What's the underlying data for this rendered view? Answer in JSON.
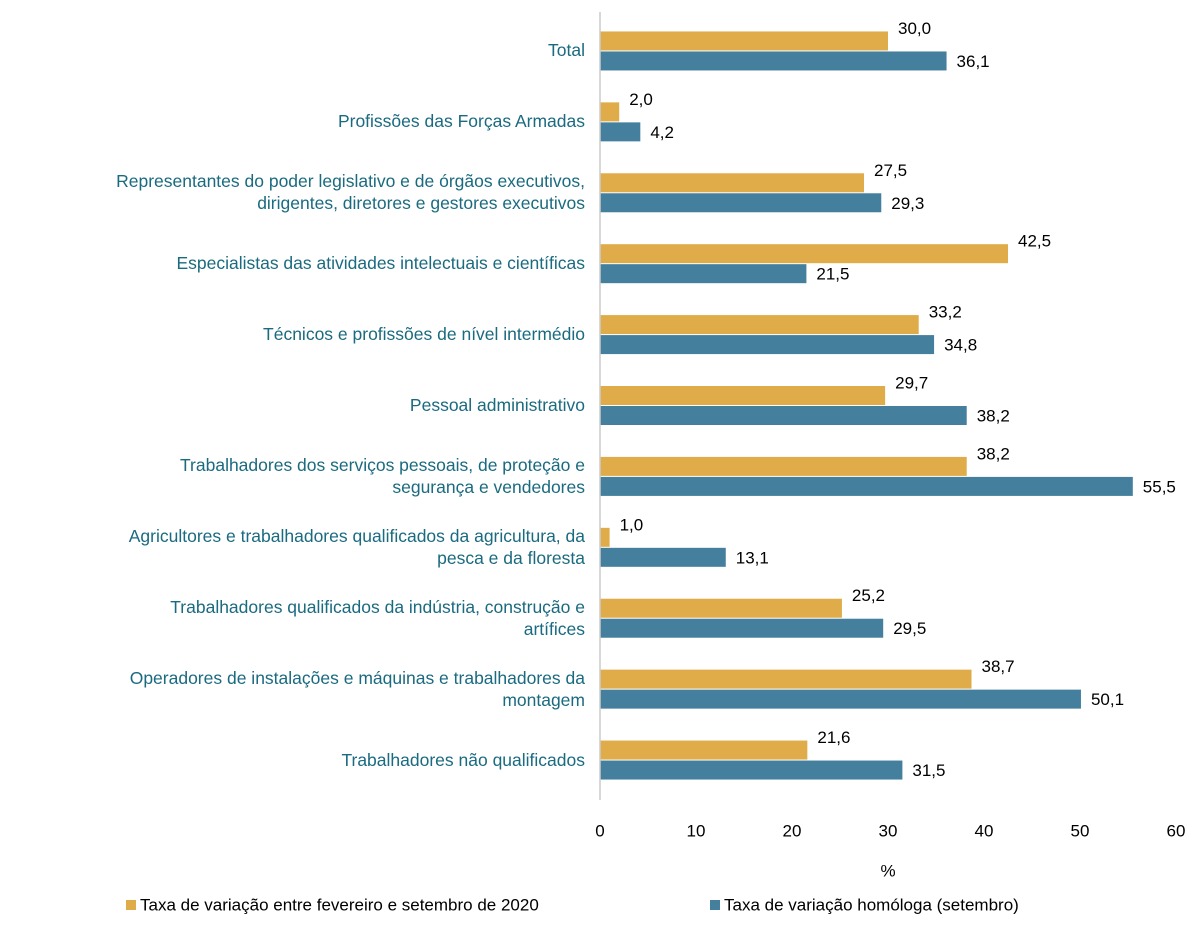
{
  "chart_data": {
    "type": "hbar",
    "categories": [
      "Total",
      "Profissões das Forças Armadas",
      "Representantes do poder legislativo e de órgãos executivos,\ndirigentes, diretores e gestores executivos",
      "Especialistas das atividades intelectuais e científicas",
      "Técnicos e profissões de nível intermédio",
      "Pessoal administrativo",
      "Trabalhadores dos serviços pessoais, de proteção e\nsegurança e vendedores",
      "Agricultores e trabalhadores qualificados da agricultura, da\npesca e da floresta",
      "Trabalhadores qualificados da indústria, construção e\nartífices",
      "Operadores de instalações e máquinas e trabalhadores da\nmontagem",
      "Trabalhadores não qualificados"
    ],
    "series": [
      {
        "name": "Taxa de variação entre fevereiro e setembro de 2020",
        "color": "#e0ac4a",
        "values": [
          30.0,
          2.0,
          27.5,
          42.5,
          33.2,
          29.7,
          38.2,
          1.0,
          25.2,
          38.7,
          21.6
        ],
        "value_labels": [
          "30,0",
          "2,0",
          "27,5",
          "42,5",
          "33,2",
          "29,7",
          "38,2",
          "1,0",
          "25,2",
          "38,7",
          "21,6"
        ]
      },
      {
        "name": "Taxa de variação homóloga (setembro)",
        "color": "#44809e",
        "values": [
          36.1,
          4.2,
          29.3,
          21.5,
          34.8,
          38.2,
          55.5,
          13.1,
          29.5,
          50.1,
          31.5
        ],
        "value_labels": [
          "36,1",
          "4,2",
          "29,3",
          "21,5",
          "34,8",
          "38,2",
          "55,5",
          "13,1",
          "29,5",
          "50,1",
          "31,5"
        ]
      }
    ],
    "xlabel": "%",
    "xlim": [
      0,
      60
    ],
    "xticks": [
      0,
      10,
      20,
      30,
      40,
      50,
      60
    ]
  }
}
